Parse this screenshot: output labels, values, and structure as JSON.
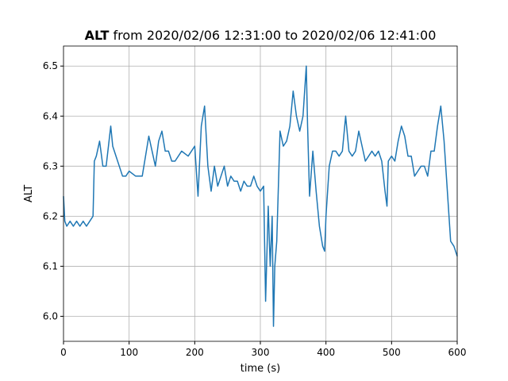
{
  "chart_data": {
    "type": "line",
    "title": {
      "bold": "ALT",
      "text": "from 2020/02/06 12:31:00 to 2020/02/06 12:41:00"
    },
    "x_label": "time (s)",
    "y_label": "ALT",
    "x": [
      0,
      2,
      5,
      10,
      15,
      20,
      25,
      30,
      35,
      40,
      45,
      47,
      50,
      55,
      60,
      65,
      72,
      75,
      80,
      85,
      90,
      95,
      100,
      110,
      120,
      125,
      130,
      135,
      140,
      145,
      150,
      155,
      160,
      165,
      170,
      180,
      190,
      200,
      205,
      210,
      215,
      220,
      225,
      230,
      235,
      240,
      245,
      250,
      255,
      260,
      265,
      270,
      275,
      280,
      285,
      290,
      295,
      300,
      305,
      308,
      312,
      315,
      318,
      320,
      322,
      325,
      330,
      335,
      340,
      345,
      350,
      355,
      360,
      365,
      370,
      372,
      375,
      380,
      385,
      390,
      395,
      398,
      400,
      405,
      410,
      415,
      420,
      425,
      430,
      435,
      440,
      445,
      450,
      455,
      460,
      465,
      470,
      475,
      480,
      485,
      490,
      493,
      495,
      500,
      505,
      510,
      515,
      520,
      525,
      530,
      535,
      540,
      545,
      550,
      555,
      560,
      565,
      570,
      575,
      580,
      585,
      590,
      595,
      600
    ],
    "series": [
      {
        "name": "ALT",
        "color": "#1f77b4",
        "values": [
          6.24,
          6.19,
          6.18,
          6.19,
          6.18,
          6.19,
          6.18,
          6.19,
          6.18,
          6.19,
          6.2,
          6.31,
          6.32,
          6.35,
          6.3,
          6.3,
          6.38,
          6.34,
          6.32,
          6.3,
          6.28,
          6.28,
          6.29,
          6.28,
          6.28,
          6.32,
          6.36,
          6.33,
          6.3,
          6.35,
          6.37,
          6.33,
          6.33,
          6.31,
          6.31,
          6.33,
          6.32,
          6.34,
          6.24,
          6.38,
          6.42,
          6.3,
          6.25,
          6.3,
          6.26,
          6.28,
          6.3,
          6.26,
          6.28,
          6.27,
          6.27,
          6.25,
          6.27,
          6.26,
          6.26,
          6.28,
          6.26,
          6.25,
          6.26,
          6.03,
          6.22,
          6.1,
          6.2,
          5.98,
          6.1,
          6.15,
          6.37,
          6.34,
          6.35,
          6.38,
          6.45,
          6.4,
          6.37,
          6.4,
          6.5,
          6.38,
          6.24,
          6.33,
          6.25,
          6.18,
          6.14,
          6.13,
          6.2,
          6.3,
          6.33,
          6.33,
          6.32,
          6.33,
          6.4,
          6.33,
          6.32,
          6.33,
          6.37,
          6.34,
          6.31,
          6.32,
          6.33,
          6.32,
          6.33,
          6.31,
          6.25,
          6.22,
          6.31,
          6.32,
          6.31,
          6.35,
          6.38,
          6.36,
          6.32,
          6.32,
          6.28,
          6.29,
          6.3,
          6.3,
          6.28,
          6.33,
          6.33,
          6.38,
          6.42,
          6.35,
          6.25,
          6.15,
          6.14,
          6.12
        ]
      }
    ],
    "xlim": [
      0,
      600
    ],
    "xticks": [
      0,
      100,
      200,
      300,
      400,
      500,
      600
    ],
    "ylim": [
      5.95,
      6.54
    ],
    "yticks": [
      {
        "value": 6,
        "label": "6.0"
      },
      6.1,
      6.2,
      6.3,
      6.4,
      6.5
    ],
    "grid": true
  }
}
